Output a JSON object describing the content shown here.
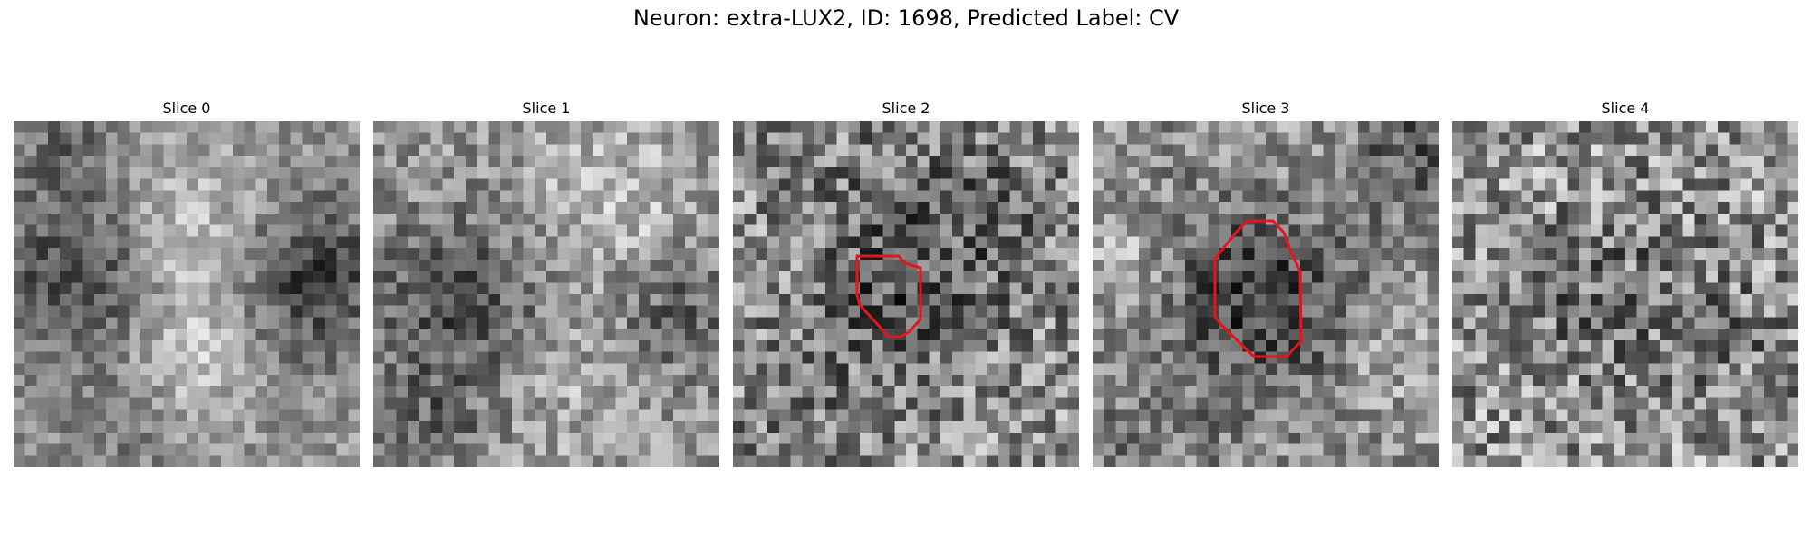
{
  "figure": {
    "title": "Neuron: extra-LUX2, ID: 1698, Predicted Label: CV"
  },
  "colors": {
    "contour": "#e8141b",
    "background": "#ffffff",
    "text": "#000000",
    "colormap": "gray"
  },
  "slices": [
    {
      "title": "Slice 0",
      "has_contour": false
    },
    {
      "title": "Slice 1",
      "has_contour": false
    },
    {
      "title": "Slice 2",
      "has_contour": true
    },
    {
      "title": "Slice 3",
      "has_contour": true
    },
    {
      "title": "Slice 4",
      "has_contour": false
    }
  ]
}
